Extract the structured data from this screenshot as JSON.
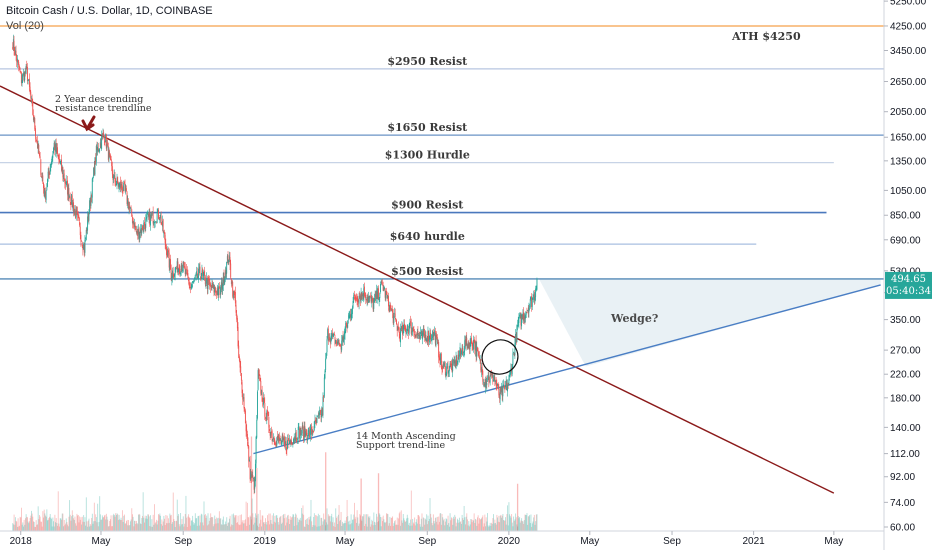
{
  "header": {
    "title": "Bitcoin Cash / U.S. Dollar, 1D, COINBASE",
    "volume_label": "Vol (20)"
  },
  "chart_data": {
    "type": "candlestick",
    "y_scale": "log",
    "ylim": [
      58,
      5300
    ],
    "xlim": [
      "2017-12-01",
      "2021-07-15"
    ],
    "x_tick_labels": [
      {
        "date": "2018-01-01",
        "label": "2018"
      },
      {
        "date": "2018-05-01",
        "label": "May"
      },
      {
        "date": "2018-09-01",
        "label": "Sep"
      },
      {
        "date": "2019-01-01",
        "label": "2019"
      },
      {
        "date": "2019-05-01",
        "label": "May"
      },
      {
        "date": "2019-09-01",
        "label": "Sep"
      },
      {
        "date": "2020-01-01",
        "label": "2020"
      },
      {
        "date": "2020-05-01",
        "label": "May"
      },
      {
        "date": "2020-09-01",
        "label": "Sep"
      },
      {
        "date": "2021-01-01",
        "label": "2021"
      },
      {
        "date": "2021-05-01",
        "label": "May"
      }
    ],
    "y_tick_labels": [
      {
        "value": 5250,
        "label": "5250.00"
      },
      {
        "value": 4250,
        "label": "4250.00"
      },
      {
        "value": 3450,
        "label": "3450.00"
      },
      {
        "value": 2650,
        "label": "2650.00"
      },
      {
        "value": 2050,
        "label": "2050.00"
      },
      {
        "value": 1650,
        "label": "1650.00"
      },
      {
        "value": 1350,
        "label": "1350.00"
      },
      {
        "value": 1050,
        "label": "1050.00"
      },
      {
        "value": 850,
        "label": "850.00"
      },
      {
        "value": 690,
        "label": "690.00"
      },
      {
        "value": 530,
        "label": "530.00"
      },
      {
        "value": 440,
        "label": "440.00"
      },
      {
        "value": 350,
        "label": "350.00"
      },
      {
        "value": 270,
        "label": "270.00"
      },
      {
        "value": 220,
        "label": "220.00"
      },
      {
        "value": 180,
        "label": "180.00"
      },
      {
        "value": 140,
        "label": "140.00"
      },
      {
        "value": 112,
        "label": "112.00"
      },
      {
        "value": 92,
        "label": "92.00"
      },
      {
        "value": 74,
        "label": "74.00"
      },
      {
        "value": 60,
        "label": "60.00"
      }
    ],
    "price_path": [
      [
        "2017-12-20",
        3700
      ],
      [
        "2018-01-02",
        2700
      ],
      [
        "2018-01-10",
        2900
      ],
      [
        "2018-01-22",
        1800
      ],
      [
        "2018-02-06",
        1000
      ],
      [
        "2018-02-20",
        1550
      ],
      [
        "2018-03-10",
        1100
      ],
      [
        "2018-03-25",
        850
      ],
      [
        "2018-04-06",
        640
      ],
      [
        "2018-04-24",
        1450
      ],
      [
        "2018-05-06",
        1700
      ],
      [
        "2018-05-20",
        1150
      ],
      [
        "2018-06-05",
        1050
      ],
      [
        "2018-06-24",
        720
      ],
      [
        "2018-07-10",
        820
      ],
      [
        "2018-07-28",
        860
      ],
      [
        "2018-08-14",
        520
      ],
      [
        "2018-08-30",
        560
      ],
      [
        "2018-09-12",
        460
      ],
      [
        "2018-09-26",
        520
      ],
      [
        "2018-10-12",
        460
      ],
      [
        "2018-10-26",
        440
      ],
      [
        "2018-11-08",
        600
      ],
      [
        "2018-11-15",
        430
      ],
      [
        "2018-11-18",
        420
      ],
      [
        "2018-11-23",
        250
      ],
      [
        "2018-12-01",
        170
      ],
      [
        "2018-12-10",
        95
      ],
      [
        "2018-12-17",
        85
      ],
      [
        "2018-12-22",
        220
      ],
      [
        "2018-12-31",
        165
      ],
      [
        "2019-01-12",
        130
      ],
      [
        "2019-02-01",
        120
      ],
      [
        "2019-02-20",
        135
      ],
      [
        "2019-03-10",
        132
      ],
      [
        "2019-03-28",
        160
      ],
      [
        "2019-04-05",
        310
      ],
      [
        "2019-04-25",
        280
      ],
      [
        "2019-05-15",
        420
      ],
      [
        "2019-05-30",
        440
      ],
      [
        "2019-06-12",
        400
      ],
      [
        "2019-06-26",
        470
      ],
      [
        "2019-07-08",
        380
      ],
      [
        "2019-07-22",
        310
      ],
      [
        "2019-08-06",
        330
      ],
      [
        "2019-08-22",
        300
      ],
      [
        "2019-09-12",
        310
      ],
      [
        "2019-09-24",
        230
      ],
      [
        "2019-10-10",
        235
      ],
      [
        "2019-10-28",
        285
      ],
      [
        "2019-11-10",
        290
      ],
      [
        "2019-11-25",
        210
      ],
      [
        "2019-12-10",
        215
      ],
      [
        "2019-12-18",
        182
      ],
      [
        "2020-01-01",
        205
      ],
      [
        "2020-01-15",
        340
      ],
      [
        "2020-01-28",
        380
      ],
      [
        "2020-02-08",
        430
      ],
      [
        "2020-02-12",
        494.65
      ]
    ],
    "volume_spikes": [
      [
        "2018-12-12",
        0.9
      ],
      [
        "2018-12-20",
        0.6
      ],
      [
        "2019-04-02",
        0.75
      ],
      [
        "2019-05-25",
        0.5
      ],
      [
        "2019-06-20",
        0.55
      ],
      [
        "2020-01-14",
        0.45
      ]
    ],
    "horizontal_levels": [
      {
        "label": "ATH $4250",
        "value": 4250,
        "color": "#f5a04a"
      },
      {
        "label": "$2950 Resist",
        "value": 2950,
        "color": "#b7c6e0"
      },
      {
        "label": "$1650 Resist",
        "value": 1680,
        "color": "#6a93c5"
      },
      {
        "label": "$1300 Hurdle",
        "value": 1330,
        "color": "#c7d3e6"
      },
      {
        "label": "$900 Resist",
        "value": 870,
        "color": "#4a78bd"
      },
      {
        "label": "$640 hurdle",
        "value": 665,
        "color": "#a9bfe0"
      },
      {
        "label": "$500 Resist",
        "value": 494.65,
        "color": "#2f6fa8"
      }
    ],
    "trendlines": [
      {
        "label": "2 Year descending resistance trendline",
        "from": [
          "2017-12-01",
          2550
        ],
        "to": [
          "2021-05-01",
          80
        ],
        "color": "#8b1a1a"
      },
      {
        "label": "14 Month Ascending Support trend-line",
        "from": [
          "2018-12-15",
          112
        ],
        "to": [
          "2021-07-10",
          470
        ],
        "color": "#4a7ec4"
      }
    ],
    "annotations": {
      "descending_label_line1": "2 Year descending",
      "descending_label_line2": "resistance trendline",
      "ascending_label_line1": "14 Month Ascending",
      "ascending_label_line2": "Support trend-line",
      "wedge_label": "Wedge?",
      "current_price": "494.65",
      "countdown": "05:40:34"
    },
    "colors": {
      "up": "#26a69a",
      "down": "#ef5350",
      "price_badge": "#26a69a",
      "wedge_fill": "#e3edf3"
    }
  }
}
